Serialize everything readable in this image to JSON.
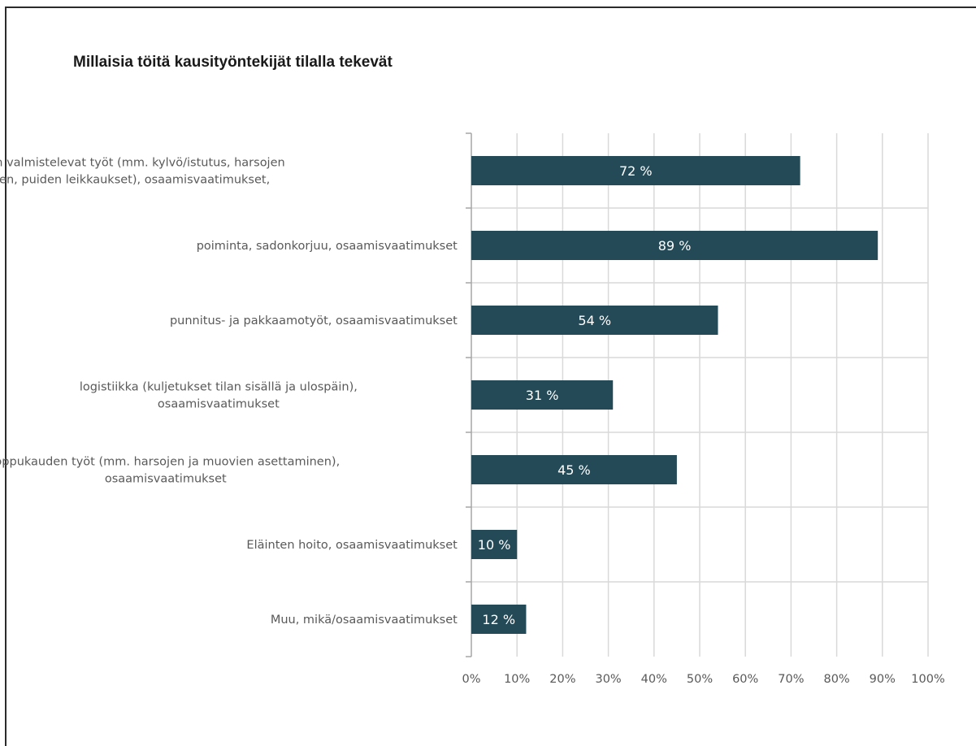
{
  "chart_data": {
    "type": "bar",
    "orientation": "horizontal",
    "title": "Millaisia töitä kausityöntekijät tilalla tekevät",
    "categories": [
      [
        "kasvukauden valmistelevat työt (mm. kylvö/istutus, harsojen",
        "asettaminen, puiden leikkaukset), osaamisvaatimukset,"
      ],
      [
        "poiminta, sadonkorjuu, osaamisvaatimukset"
      ],
      [
        "punnitus- ja pakkaamotyöt, osaamisvaatimukset"
      ],
      [
        "logistiikka (kuljetukset tilan sisällä ja ulospäin),",
        "osaamisvaatimukset"
      ],
      [
        "loppukauden työt (mm. harsojen ja muovien asettaminen),",
        "osaamisvaatimukset"
      ],
      [
        "Eläinten hoito, osaamisvaatimukset"
      ],
      [
        "Muu, mikä/osaamisvaatimukset"
      ]
    ],
    "values": [
      72,
      89,
      54,
      31,
      45,
      10,
      12
    ],
    "data_labels": [
      "72 %",
      "89 %",
      "54 %",
      "31 %",
      "45 %",
      "10 %",
      "12 %"
    ],
    "xlim": [
      0,
      100
    ],
    "x_ticks": [
      "0%",
      "10%",
      "20%",
      "30%",
      "40%",
      "50%",
      "60%",
      "70%",
      "80%",
      "90%",
      "100%"
    ],
    "grid": true,
    "bar_color": "#254a57",
    "grid_color": "#d9d9d9"
  }
}
